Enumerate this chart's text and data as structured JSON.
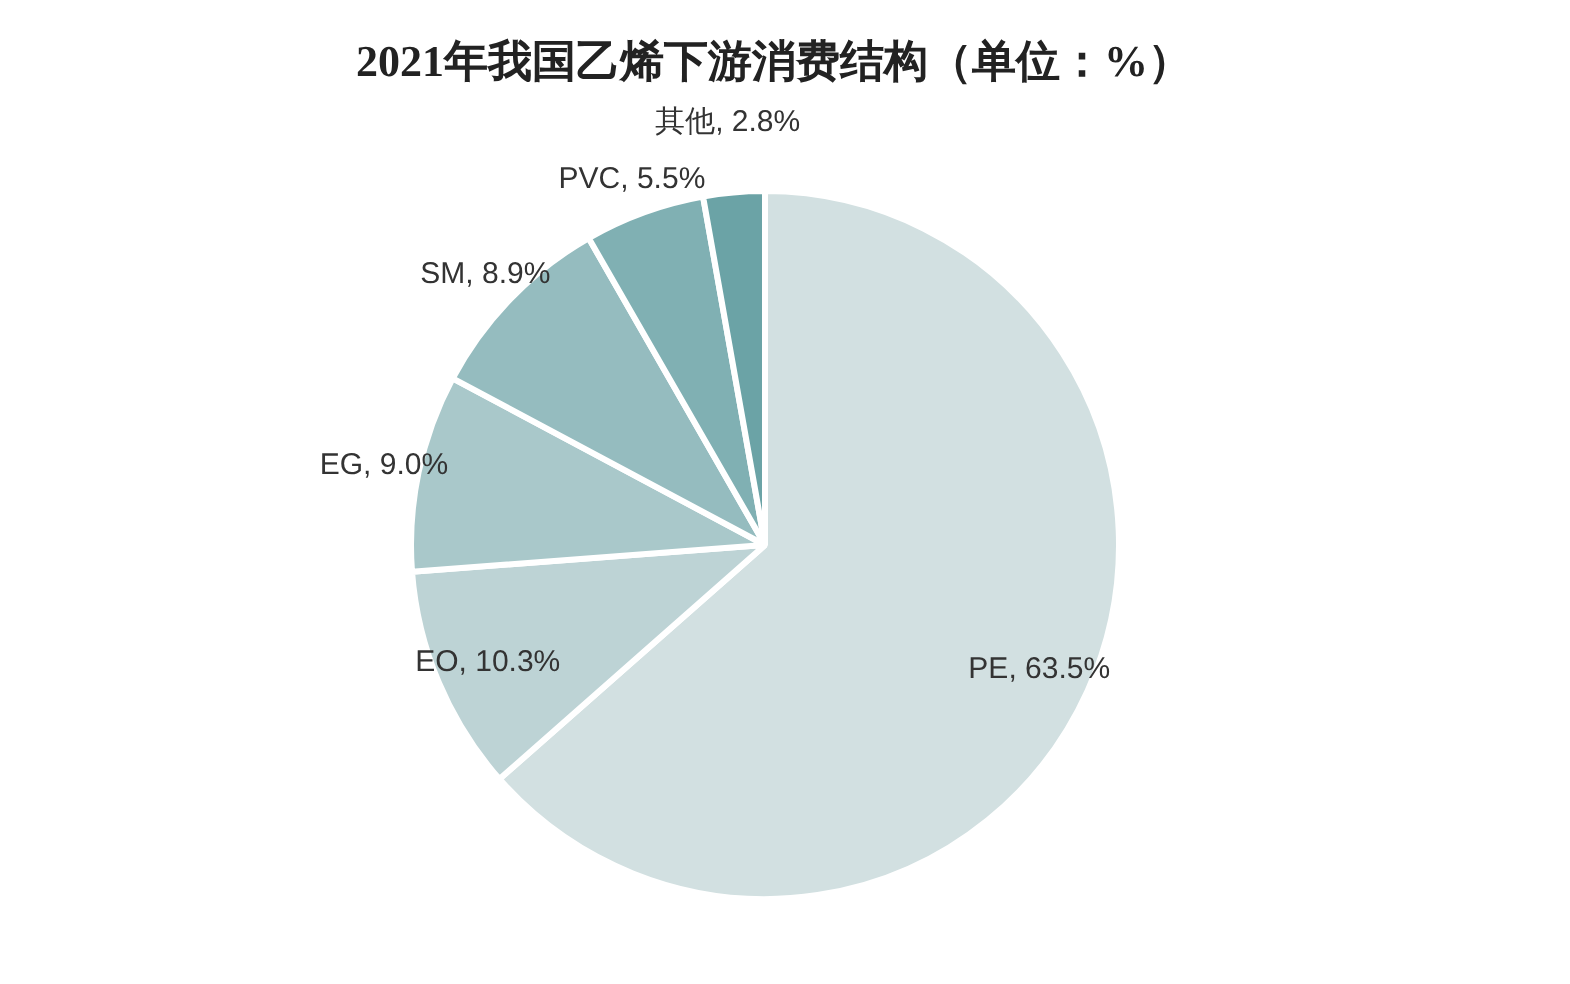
{
  "chart_data": {
    "type": "pie",
    "title": "2021年我国乙烯下游消费结构（单位：%）",
    "categories": [
      "PE",
      "EO",
      "EG",
      "SM",
      "PVC",
      "其他"
    ],
    "values": [
      63.5,
      10.3,
      9.0,
      8.9,
      5.5,
      2.8
    ],
    "colors": [
      "#d2e0e1",
      "#bdd3d5",
      "#a9c8ca",
      "#95bcbf",
      "#80b0b3",
      "#6ba3a6"
    ],
    "value_labels": [
      "63.5%",
      "10.3%",
      "9.0%",
      "8.9%",
      "5.5%",
      "2.8%"
    ],
    "legend": false
  }
}
